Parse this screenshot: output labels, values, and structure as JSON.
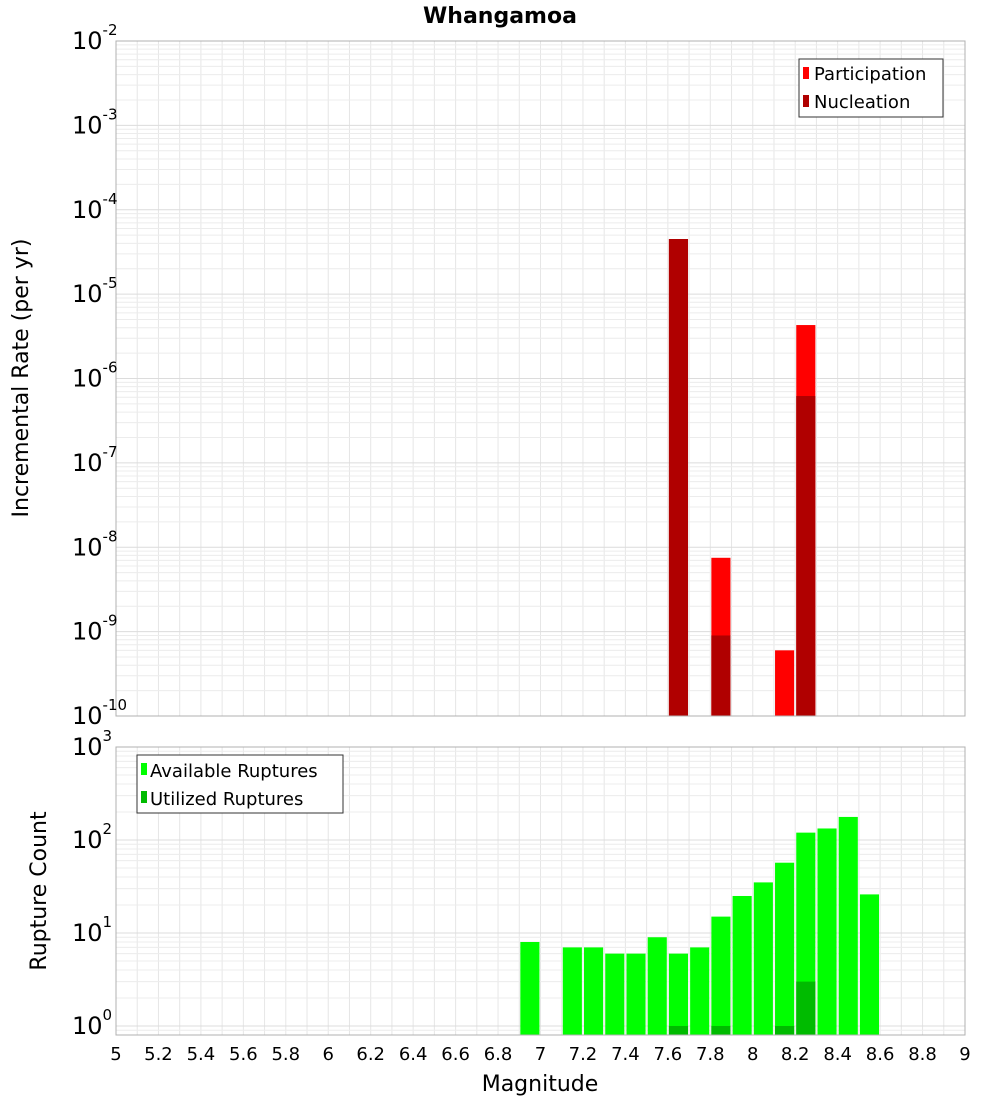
{
  "chart_data": [
    {
      "type": "bar",
      "title": "Whangamoa",
      "xlabel": "",
      "ylabel": "Incremental Rate (per yr)",
      "yscale": "log",
      "xlim": [
        5,
        9
      ],
      "ylim": [
        1e-10,
        0.01
      ],
      "yticks": [
        {
          "base": "10",
          "exp": "-10",
          "value": 1e-10
        },
        {
          "base": "10",
          "exp": "-9",
          "value": 1e-09
        },
        {
          "base": "10",
          "exp": "-8",
          "value": 1e-08
        },
        {
          "base": "10",
          "exp": "-7",
          "value": 1e-07
        },
        {
          "base": "10",
          "exp": "-6",
          "value": 1e-06
        },
        {
          "base": "10",
          "exp": "-5",
          "value": 1e-05
        },
        {
          "base": "10",
          "exp": "-4",
          "value": 0.0001
        },
        {
          "base": "10",
          "exp": "-3",
          "value": 0.001
        },
        {
          "base": "10",
          "exp": "-2",
          "value": 0.01
        }
      ],
      "grid": true,
      "legend": "top-right",
      "bar_width": 0.09,
      "series": [
        {
          "name": "Participation",
          "color": "#ff0000",
          "points": [
            {
              "x": 7.65,
              "y": 4.5e-05
            },
            {
              "x": 7.85,
              "y": 7.5e-09
            },
            {
              "x": 8.15,
              "y": 6e-10
            },
            {
              "x": 8.25,
              "y": 4.3e-06
            }
          ]
        },
        {
          "name": "Nucleation",
          "color": "#b00000",
          "points": [
            {
              "x": 7.65,
              "y": 4.5e-05
            },
            {
              "x": 7.85,
              "y": 9e-10
            },
            {
              "x": 8.25,
              "y": 6.2e-07
            }
          ]
        }
      ]
    },
    {
      "type": "bar",
      "title": "",
      "xlabel": "Magnitude",
      "ylabel": "Rupture Count",
      "yscale": "log",
      "xlim": [
        5,
        9
      ],
      "ylim": [
        0.8,
        1000
      ],
      "xticks": [
        "5",
        "5.2",
        "5.4",
        "5.6",
        "5.8",
        "6",
        "6.2",
        "6.4",
        "6.6",
        "6.8",
        "7",
        "7.2",
        "7.4",
        "7.6",
        "7.8",
        "8",
        "8.2",
        "8.4",
        "8.6",
        "8.8",
        "9"
      ],
      "yticks": [
        {
          "base": "10",
          "exp": "0",
          "value": 1
        },
        {
          "base": "10",
          "exp": "1",
          "value": 10
        },
        {
          "base": "10",
          "exp": "2",
          "value": 100
        },
        {
          "base": "10",
          "exp": "3",
          "value": 1000
        }
      ],
      "grid": true,
      "legend": "top-left",
      "bar_width": 0.09,
      "series": [
        {
          "name": "Available Ruptures",
          "color": "#00ff00",
          "points": [
            {
              "x": 6.95,
              "y": 8
            },
            {
              "x": 7.15,
              "y": 7
            },
            {
              "x": 7.25,
              "y": 7
            },
            {
              "x": 7.35,
              "y": 6
            },
            {
              "x": 7.45,
              "y": 6
            },
            {
              "x": 7.55,
              "y": 9
            },
            {
              "x": 7.65,
              "y": 6
            },
            {
              "x": 7.75,
              "y": 7
            },
            {
              "x": 7.85,
              "y": 15
            },
            {
              "x": 7.95,
              "y": 25
            },
            {
              "x": 8.05,
              "y": 35
            },
            {
              "x": 8.15,
              "y": 57
            },
            {
              "x": 8.25,
              "y": 120
            },
            {
              "x": 8.35,
              "y": 133
            },
            {
              "x": 8.45,
              "y": 177
            },
            {
              "x": 8.55,
              "y": 26
            }
          ]
        },
        {
          "name": "Utilized Ruptures",
          "color": "#00bb00",
          "points": [
            {
              "x": 7.65,
              "y": 1
            },
            {
              "x": 7.85,
              "y": 1
            },
            {
              "x": 8.15,
              "y": 1
            },
            {
              "x": 8.25,
              "y": 3
            }
          ]
        }
      ]
    }
  ]
}
